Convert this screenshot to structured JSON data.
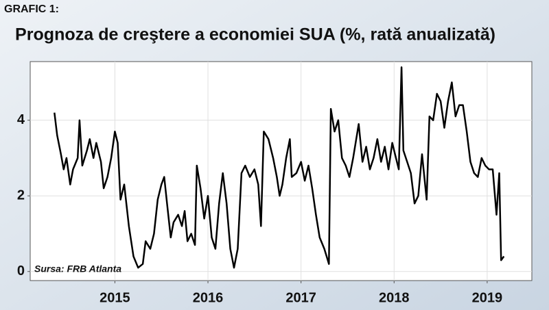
{
  "chart_data": {
    "type": "line",
    "label": "GRAFIC 1:",
    "title": "Prognoza de creştere a economiei SUA (%, rată anualizată)",
    "source": "Sursa: FRB Atlanta",
    "color": "#000000",
    "grid": true,
    "xlim": [
      2014.09,
      2019.48
    ],
    "xticks": [
      2015,
      2016,
      2017,
      2018,
      2019
    ],
    "ylim": [
      -0.24,
      5.55
    ],
    "yticks": [
      0,
      2,
      4
    ],
    "x": [
      2014.35,
      2014.38,
      2014.42,
      2014.45,
      2014.48,
      2014.52,
      2014.55,
      2014.6,
      2014.62,
      2014.65,
      2014.7,
      2014.73,
      2014.77,
      2014.8,
      2014.85,
      2014.88,
      2014.92,
      2014.96,
      2015.0,
      2015.03,
      2015.06,
      2015.1,
      2015.15,
      2015.2,
      2015.25,
      2015.3,
      2015.33,
      2015.38,
      2015.42,
      2015.46,
      2015.5,
      2015.53,
      2015.56,
      2015.6,
      2015.63,
      2015.68,
      2015.72,
      2015.75,
      2015.78,
      2015.82,
      2015.86,
      2015.88,
      2015.92,
      2015.96,
      2016.0,
      2016.04,
      2016.08,
      2016.12,
      2016.16,
      2016.2,
      2016.24,
      2016.28,
      2016.32,
      2016.36,
      2016.4,
      2016.45,
      2016.5,
      2016.54,
      2016.57,
      2016.6,
      2016.65,
      2016.7,
      2016.74,
      2016.77,
      2016.8,
      2016.84,
      2016.88,
      2016.9,
      2016.95,
      2017.0,
      2017.04,
      2017.08,
      2017.12,
      2017.16,
      2017.2,
      2017.25,
      2017.3,
      2017.32,
      2017.36,
      2017.4,
      2017.44,
      2017.48,
      2017.52,
      2017.56,
      2017.6,
      2017.62,
      2017.66,
      2017.7,
      2017.74,
      2017.78,
      2017.82,
      2017.86,
      2017.9,
      2017.94,
      2017.98,
      2018.02,
      2018.05,
      2018.08,
      2018.1,
      2018.14,
      2018.18,
      2018.22,
      2018.26,
      2018.3,
      2018.35,
      2018.38,
      2018.42,
      2018.46,
      2018.5,
      2018.54,
      2018.58,
      2018.62,
      2018.66,
      2018.7,
      2018.74,
      2018.78,
      2018.82,
      2018.86,
      2018.9,
      2018.94,
      2018.98,
      2019.02,
      2019.06,
      2019.1,
      2019.13,
      2019.15,
      2019.18
    ],
    "values": [
      4.2,
      3.6,
      3.1,
      2.7,
      3.0,
      2.3,
      2.7,
      3.0,
      4.0,
      2.8,
      3.2,
      3.5,
      3.0,
      3.4,
      2.9,
      2.2,
      2.5,
      3.0,
      3.7,
      3.4,
      1.9,
      2.3,
      1.2,
      0.4,
      0.1,
      0.2,
      0.8,
      0.6,
      1.0,
      1.9,
      2.3,
      2.5,
      1.8,
      0.9,
      1.3,
      1.5,
      1.2,
      1.6,
      0.8,
      1.0,
      0.7,
      2.8,
      2.2,
      1.4,
      2.0,
      0.9,
      0.6,
      1.8,
      2.6,
      1.8,
      0.6,
      0.1,
      0.6,
      2.6,
      2.8,
      2.5,
      2.7,
      2.3,
      1.2,
      3.7,
      3.5,
      3.0,
      2.5,
      2.0,
      2.3,
      3.0,
      3.5,
      2.5,
      2.6,
      2.9,
      2.4,
      2.8,
      2.2,
      1.5,
      0.9,
      0.6,
      0.2,
      4.3,
      3.7,
      4.0,
      3.0,
      2.8,
      2.5,
      3.0,
      3.6,
      3.9,
      2.9,
      3.3,
      2.7,
      3.0,
      3.5,
      2.9,
      3.3,
      2.7,
      3.4,
      3.0,
      2.7,
      5.4,
      3.2,
      2.9,
      2.6,
      1.8,
      2.0,
      3.1,
      1.9,
      4.1,
      4.0,
      4.7,
      4.5,
      3.8,
      4.5,
      5.0,
      4.1,
      4.4,
      4.4,
      3.7,
      2.9,
      2.6,
      2.5,
      3.0,
      2.8,
      2.7,
      2.7,
      1.5,
      2.6,
      0.3,
      0.4
    ]
  }
}
